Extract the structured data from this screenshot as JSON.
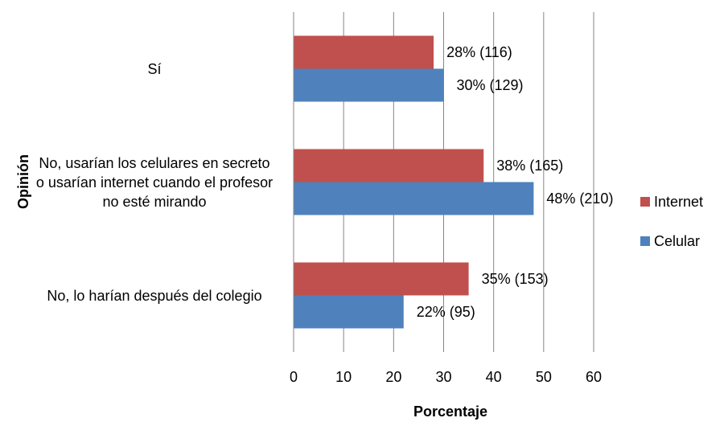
{
  "chart_data": {
    "type": "hbar",
    "categories": [
      "Sí",
      "No, usarían los celulares en secreto o usarían internet cuando el profesor no esté mirando",
      "No, lo harían después del colegio"
    ],
    "series": [
      {
        "name": "Internet",
        "color": "#c0504d",
        "values": [
          28,
          38,
          35
        ],
        "value_labels": [
          "28% (116)",
          "38% (165)",
          "35% (153)"
        ]
      },
      {
        "name": "Celular",
        "color": "#4f81bd",
        "values": [
          30,
          48,
          22
        ],
        "value_labels": [
          "30% (129)",
          "48% (210)",
          "22% (95)"
        ]
      }
    ],
    "xlim": [
      0,
      60
    ],
    "xticks": [
      0,
      10,
      20,
      30,
      40,
      50,
      60
    ],
    "xlabel": "Porcentaje",
    "ylabel": "Opinión",
    "grid": true,
    "legend": "right"
  }
}
